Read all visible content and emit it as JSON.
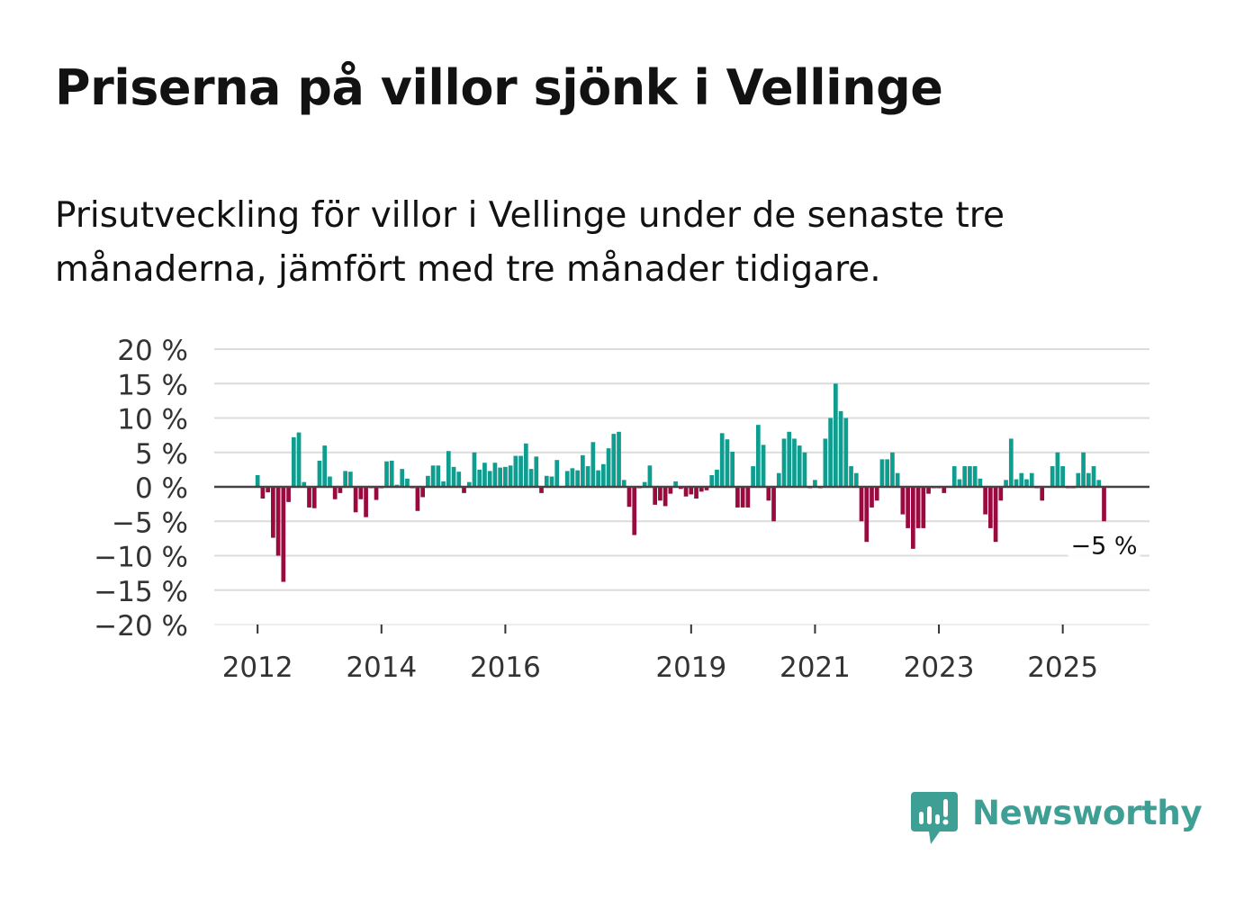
{
  "title": "Priserna på villor sjönk i Vellinge",
  "subtitle": "Prisutveckling för villor i Vellinge under de senaste tre månaderna, jämfört med tre månader tidigare.",
  "brand": {
    "name": "Newsworthy",
    "color": "#3e9f95",
    "icon": "newsworthy-chart-icon"
  },
  "colors": {
    "positive": "#0f9d8f",
    "negative": "#9b0a3e",
    "grid": "#dcdcdc",
    "zero": "#444444"
  },
  "chart_data": {
    "type": "bar",
    "title": "Priserna på villor sjönk i Vellinge",
    "xlabel": "",
    "ylabel": "",
    "ylim": [
      -20,
      20
    ],
    "yticks": [
      20,
      15,
      10,
      5,
      0,
      -5,
      -10,
      -15,
      -20
    ],
    "ytick_labels": [
      "20 %",
      "15 %",
      "10 %",
      "5 %",
      "0 %",
      "−5 %",
      "−10 %",
      "−15 %",
      "−20 %"
    ],
    "x_start": 2012.0,
    "x_step": 0.08333,
    "xticks": [
      2012,
      2014,
      2016,
      2019,
      2021,
      2023,
      2025
    ],
    "xtick_labels": [
      "2012",
      "2014",
      "2016",
      "2019",
      "2021",
      "2023",
      "2025"
    ],
    "xlim": [
      2011.3,
      2026.4
    ],
    "annotation": {
      "label": "−5 %",
      "value": -5
    },
    "values": [
      1.7,
      -1.7,
      -0.8,
      -7.4,
      -10,
      -13.8,
      -2.2,
      7.2,
      7.9,
      0.7,
      -3,
      -3.1,
      3.8,
      6,
      1.5,
      -1.8,
      -0.9,
      2.3,
      2.2,
      -3.7,
      -1.8,
      -4.4,
      -0.2,
      -1.9,
      -0.2,
      3.7,
      3.8,
      0.3,
      2.6,
      1.2,
      -0.2,
      -3.5,
      -1.5,
      1.6,
      3.1,
      3.1,
      0.8,
      5.2,
      2.9,
      2.2,
      -0.9,
      0.7,
      5,
      2.5,
      3.5,
      2.3,
      3.5,
      2.8,
      2.9,
      3.1,
      4.5,
      4.5,
      6.3,
      2.6,
      4.4,
      -0.9,
      1.6,
      1.5,
      3.9,
      0.1,
      2.3,
      2.7,
      2.4,
      4.6,
      3,
      6.5,
      2.4,
      3.3,
      5.6,
      7.7,
      8,
      1,
      -2.9,
      -7,
      -0.2,
      0.7,
      3.1,
      -2.6,
      -2,
      -2.8,
      -1,
      0.8,
      -0.3,
      -1.4,
      -1.1,
      -1.7,
      -0.7,
      -0.5,
      1.7,
      2.5,
      7.8,
      6.9,
      5.1,
      -3,
      -3,
      -3,
      3,
      9,
      6.1,
      -2,
      -5,
      2,
      7,
      8,
      7,
      6,
      5,
      -0.2,
      1,
      -0.2,
      7,
      10,
      15,
      11,
      10,
      3,
      2,
      -5,
      -8,
      -3,
      -2,
      4,
      4,
      5,
      2,
      -4,
      -6,
      -9,
      -6,
      -6,
      -1,
      -0.2,
      -0.2,
      -0.9,
      0.1,
      3,
      1.1,
      3,
      3,
      3,
      1.2,
      -4,
      -6,
      -8,
      -2,
      1,
      7,
      1.1,
      2,
      1.1,
      2,
      -0.2,
      -2,
      0.1,
      3,
      5,
      3,
      -0.2,
      -0.2,
      2,
      5,
      2,
      3,
      1,
      -5
    ]
  }
}
